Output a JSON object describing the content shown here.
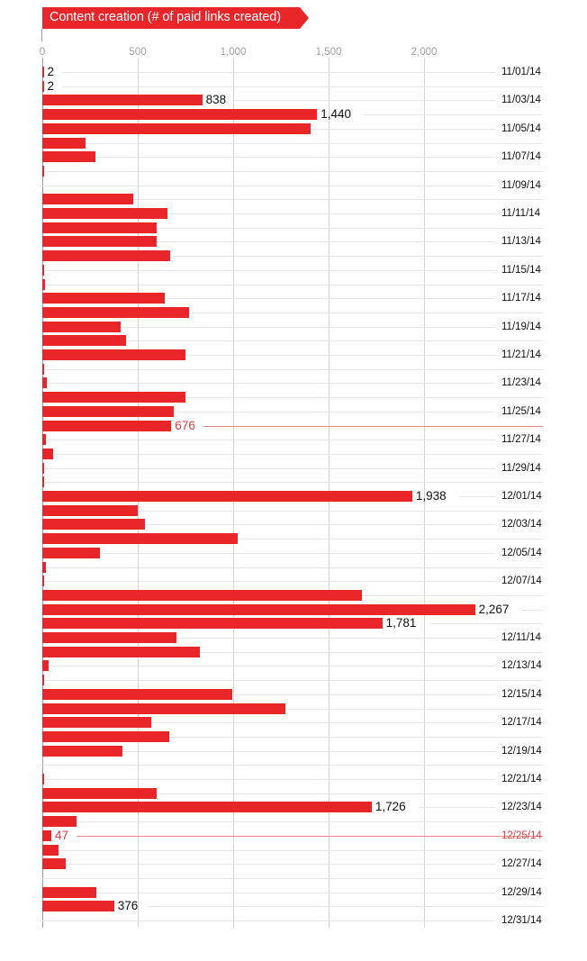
{
  "chart_data": {
    "type": "bar",
    "orientation": "horizontal",
    "title": "Content creation (# of paid links created)",
    "xlabel": "",
    "ylabel": "",
    "xlim": [
      0,
      2000
    ],
    "x_ticks": [
      "0",
      "500",
      "1,000",
      "1,500",
      "2,000"
    ],
    "x_tick_values": [
      0,
      500,
      1000,
      1500,
      2000
    ],
    "grid": true,
    "legend": null,
    "categories": [
      "11/01/14",
      "11/02/14",
      "11/03/14",
      "11/04/14",
      "11/05/14",
      "11/06/14",
      "11/07/14",
      "11/08/14",
      "11/09/14",
      "11/10/14",
      "11/11/14",
      "11/12/14",
      "11/13/14",
      "11/14/14",
      "11/15/14",
      "11/16/14",
      "11/17/14",
      "11/18/14",
      "11/19/14",
      "11/20/14",
      "11/21/14",
      "11/22/14",
      "11/23/14",
      "11/24/14",
      "11/25/14",
      "11/26/14",
      "11/27/14",
      "11/28/14",
      "11/29/14",
      "11/30/14",
      "12/01/14",
      "12/02/14",
      "12/03/14",
      "12/04/14",
      "12/05/14",
      "12/06/14",
      "12/07/14",
      "12/08/14",
      "12/09/14",
      "12/10/14",
      "12/11/14",
      "12/12/14",
      "12/13/14",
      "12/14/14",
      "12/15/14",
      "12/16/14",
      "12/17/14",
      "12/18/14",
      "12/19/14",
      "12/20/14",
      "12/21/14",
      "12/22/14",
      "12/23/14",
      "12/24/14",
      "12/25/14",
      "12/26/14",
      "12/27/14",
      "12/28/14",
      "12/29/14",
      "12/30/14",
      "12/31/14"
    ],
    "values": [
      2,
      2,
      838,
      1440,
      1406,
      227,
      280,
      3,
      0,
      478,
      655,
      600,
      600,
      670,
      8,
      12,
      643,
      769,
      410,
      438,
      750,
      4,
      22,
      750,
      688,
      676,
      18,
      57,
      6,
      6,
      1938,
      500,
      538,
      1024,
      302,
      18,
      8,
      1675,
      2267,
      1781,
      703,
      826,
      35,
      5,
      996,
      1273,
      570,
      666,
      420,
      0,
      10,
      598,
      1726,
      180,
      47,
      85,
      123,
      0,
      285,
      376,
      0
    ],
    "shown_date_labels": [
      "11/01/14",
      "11/03/14",
      "11/05/14",
      "11/07/14",
      "11/09/14",
      "11/11/14",
      "11/13/14",
      "11/15/14",
      "11/17/14",
      "11/19/14",
      "11/21/14",
      "11/23/14",
      "11/25/14",
      "11/27/14",
      "11/29/14",
      "12/01/14",
      "12/03/14",
      "12/05/14",
      "12/07/14",
      "12/11/14",
      "12/13/14",
      "12/15/14",
      "12/17/14",
      "12/19/14",
      "12/21/14",
      "12/23/14",
      "12/25/14",
      "12/27/14",
      "12/29/14",
      "12/31/14"
    ],
    "annotations": [
      {
        "date": "11/01/14",
        "label": "2"
      },
      {
        "date": "11/02/14",
        "label": "2"
      },
      {
        "date": "11/03/14",
        "label": "838"
      },
      {
        "date": "11/04/14",
        "label": "1,440"
      },
      {
        "date": "11/26/14",
        "label": "676",
        "highlight": true
      },
      {
        "date": "12/01/14",
        "label": "1,938"
      },
      {
        "date": "12/09/14",
        "label": "2,267"
      },
      {
        "date": "12/10/14",
        "label": "1,781"
      },
      {
        "date": "12/23/14",
        "label": "1,726"
      },
      {
        "date": "12/25/14",
        "label": "47",
        "highlight": true
      },
      {
        "date": "12/30/14",
        "label": "376"
      }
    ],
    "highlight_rows": [
      "11/26/14",
      "12/25/14"
    ],
    "colors": {
      "bar": "#e8262a",
      "highlight_text": "#d8403f",
      "highlight_line": "#e8888a",
      "grid": "#e6e6ec",
      "tick_text": "#a0a0a0"
    }
  }
}
